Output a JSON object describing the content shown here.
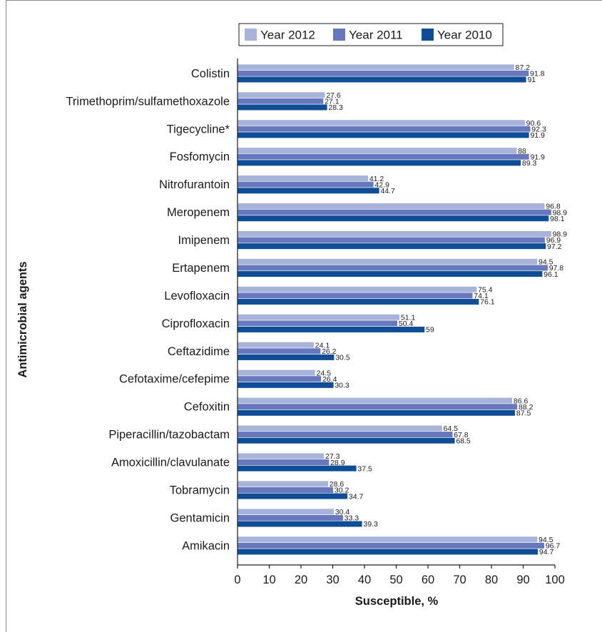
{
  "chart_data": {
    "type": "bar",
    "orientation": "horizontal",
    "categories": [
      "Colistin",
      "Trimethoprim/sulfamethoxazole",
      "Tigecycline*",
      "Fosfomycin",
      "Nitrofurantoin",
      "Meropenem",
      "Imipenem",
      "Ertapenem",
      "Levofloxacin",
      "Ciprofloxacin",
      "Ceftazidime",
      "Cefotaxime/cefepime",
      "Cefoxitin",
      "Piperacillin/tazobactam",
      "Amoxicillin/clavulanate",
      "Tobramycin",
      "Gentamicin",
      "Amikacin"
    ],
    "series": [
      {
        "name": "Year 2012",
        "color": "#a7b3d9",
        "values": [
          87.2,
          27.6,
          90.6,
          88,
          41.2,
          96.8,
          98.9,
          94.5,
          75.4,
          51.1,
          24.1,
          24.5,
          86.6,
          64.5,
          27.3,
          28.6,
          30.4,
          94.5
        ],
        "labels": [
          "87.2",
          "27.6",
          "90.6",
          "88",
          "41.2",
          "96.8",
          "98.9",
          "94.5",
          "75.4",
          "51.1",
          "24.1",
          "24.5",
          "86.6",
          "64.5",
          "27.3",
          "28.6",
          "30.4",
          "94.5"
        ]
      },
      {
        "name": "Year 2011",
        "color": "#6878bd",
        "values": [
          91.8,
          27.1,
          92.3,
          91.9,
          42.9,
          98.9,
          96.9,
          97.8,
          74.1,
          50.4,
          26.2,
          26.4,
          88.2,
          67.8,
          28.9,
          30.2,
          33.3,
          96.7
        ],
        "labels": [
          "91.8",
          "27.1",
          "92.3",
          "91.9",
          "42.9",
          "98.9",
          "96.9",
          "97.8",
          "74.1",
          "50.4",
          "26.2",
          "26.4",
          "88.2",
          "67.8",
          "28.9",
          "30.2",
          "33.3",
          "96.7"
        ]
      },
      {
        "name": "Year 2010",
        "color": "#0f4d96",
        "values": [
          91,
          28.3,
          91.9,
          89.3,
          44.7,
          98.1,
          97.2,
          96.1,
          76.1,
          59,
          30.5,
          30.3,
          87.5,
          68.5,
          37.5,
          34.7,
          39.3,
          94.7
        ],
        "labels": [
          "91",
          "28.3",
          "91.9",
          "89.3",
          "44.7",
          "98.1",
          "97.2",
          "96.1",
          "76.1",
          "59",
          "30.5",
          "30.3",
          "87.5",
          "68.5",
          "37.5",
          "34.7",
          "39.3",
          "94.7"
        ]
      }
    ],
    "legend_order": [
      0,
      1,
      2
    ],
    "legend_position": "top",
    "xlabel": "Susceptible, %",
    "ylabel": "Antimicrobial agents",
    "xlim": [
      0,
      100
    ],
    "xticks": [
      "0",
      "10",
      "20",
      "30",
      "40",
      "50",
      "60",
      "70",
      "80",
      "90",
      "100"
    ],
    "grid": false
  }
}
